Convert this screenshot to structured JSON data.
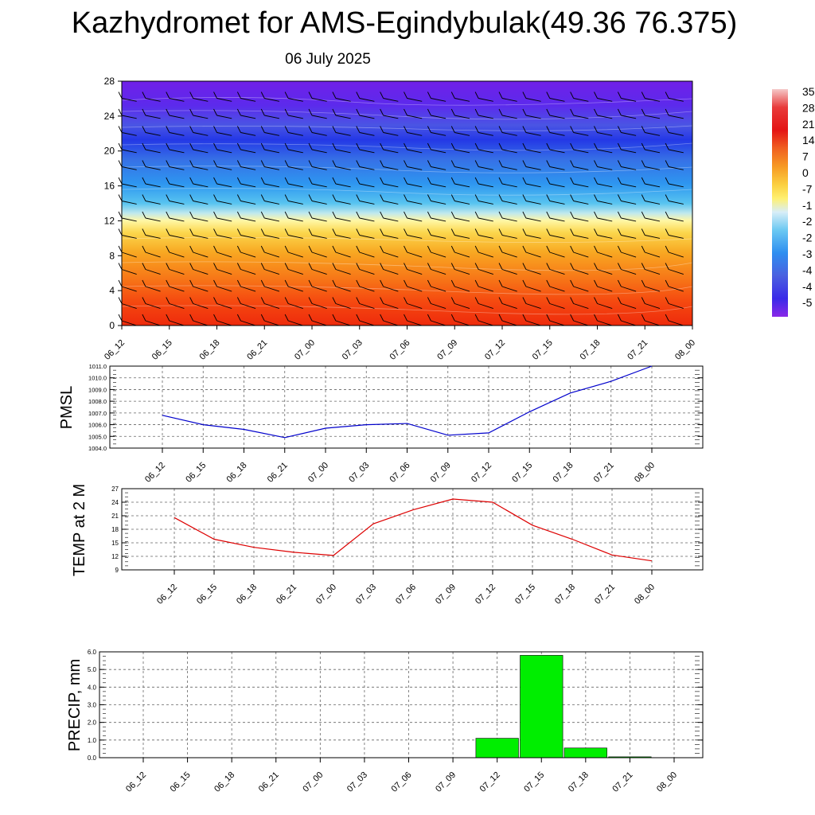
{
  "header": {
    "title": "Kazhydromet for AMS-Egindybulak(49.36 76.375)",
    "date": "06 July 2025"
  },
  "colors": {
    "pmsl_line": "#0000cc",
    "temp_line": "#dd0000",
    "precip_bar": "#00ee00"
  },
  "chart_data": [
    {
      "type": "heatmap",
      "title": "",
      "x_ticks": [
        "06_12",
        "06_15",
        "06_18",
        "06_21",
        "07_00",
        "07_03",
        "07_06",
        "07_09",
        "07_12",
        "07_15",
        "07_18",
        "07_21",
        "08_00"
      ],
      "y_ticks": [
        "0",
        "4",
        "8",
        "12",
        "16",
        "20",
        "24",
        "28"
      ],
      "ylim": [
        0,
        28
      ],
      "colorbar_labels": [
        "35",
        "28",
        "21",
        "14",
        "7",
        "0",
        "-7",
        "-1",
        "-2",
        "-2",
        "-3",
        "-4",
        "-4",
        "-5"
      ],
      "colorbar_range": [
        -56,
        35
      ],
      "overlay": "wind barbs"
    },
    {
      "type": "line",
      "ylabel": "PMSL",
      "x": [
        "06_12",
        "06_15",
        "06_18",
        "06_21",
        "07_00",
        "07_03",
        "07_06",
        "07_09",
        "07_12",
        "07_15",
        "07_18",
        "07_21",
        "08_00"
      ],
      "values": [
        1006.8,
        1006.0,
        1005.6,
        1004.9,
        1005.7,
        1006.0,
        1006.1,
        1005.1,
        1005.3,
        1007.1,
        1008.7,
        1009.7,
        1011.0
      ],
      "ylim": [
        1004.0,
        1011.0
      ],
      "y_ticks": [
        "1004.0",
        "1005.0",
        "1006.0",
        "1007.0",
        "1008.0",
        "1009.0",
        "1010.0",
        "1011.0"
      ],
      "grid": true
    },
    {
      "type": "line",
      "ylabel": "TEMP at 2 M",
      "x": [
        "06_12",
        "06_15",
        "06_18",
        "06_21",
        "07_00",
        "07_03",
        "07_06",
        "07_09",
        "07_12",
        "07_15",
        "07_18",
        "07_21",
        "08_00"
      ],
      "values": [
        20.6,
        15.8,
        14.0,
        12.9,
        12.2,
        19.2,
        22.3,
        24.7,
        24.0,
        18.9,
        15.8,
        12.3,
        11.0
      ],
      "ylim": [
        9,
        27
      ],
      "y_ticks": [
        "9",
        "12",
        "15",
        "18",
        "21",
        "24",
        "27"
      ],
      "grid": true
    },
    {
      "type": "bar",
      "ylabel": "PRECIP, mm",
      "categories": [
        "06_12",
        "06_15",
        "06_18",
        "06_21",
        "07_00",
        "07_03",
        "07_06",
        "07_09",
        "07_12",
        "07_15",
        "07_18",
        "07_21",
        "08_00"
      ],
      "values": [
        0,
        0,
        0,
        0,
        0,
        0,
        0,
        0,
        1.1,
        5.8,
        0.55,
        0.05,
        0
      ],
      "ylim": [
        0,
        6.0
      ],
      "y_ticks": [
        "0.0",
        "1.0",
        "2.0",
        "3.0",
        "4.0",
        "5.0",
        "6.0"
      ],
      "grid": true
    }
  ]
}
